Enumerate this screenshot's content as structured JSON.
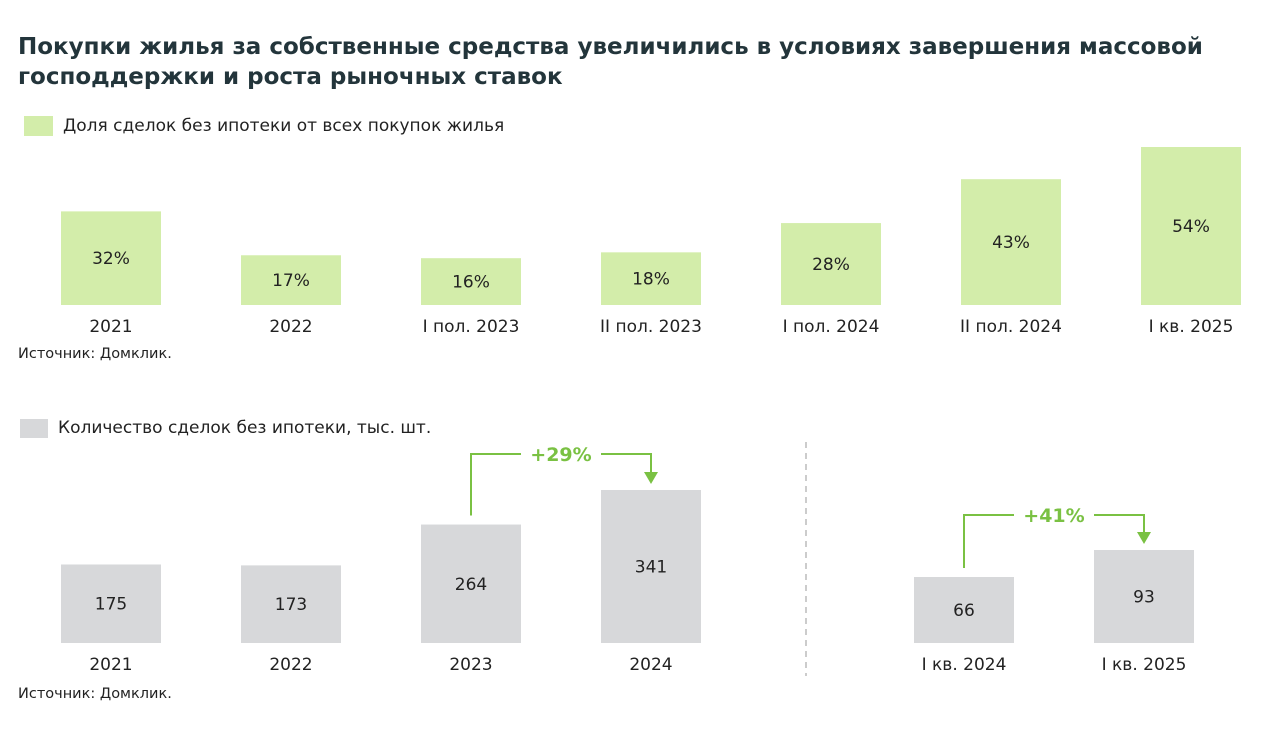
{
  "title": "Покупки жилья за собственные средства увеличились в условиях завершения массовой господдержки и роста рыночных ставок",
  "source_top": "Источник: Домклик.",
  "source_bottom": "Источник: Домклик.",
  "colors": {
    "green_bar": "#d3edaa",
    "grey_bar": "#d7d8da",
    "accent": "#7ac143",
    "divider": "#bcbcbc"
  },
  "chart_data": [
    {
      "type": "bar",
      "legend": "Доля сделок без ипотеки от всех покупок жилья",
      "categories": [
        "2021",
        "2022",
        "I пол. 2023",
        "II пол. 2023",
        "I пол. 2024",
        "II пол. 2024",
        "I кв. 2025"
      ],
      "values": [
        32,
        17,
        16,
        18,
        28,
        43,
        54
      ],
      "labels": [
        "32%",
        "17%",
        "16%",
        "18%",
        "28%",
        "43%",
        "54%"
      ],
      "unit": "%"
    },
    {
      "type": "bar",
      "legend": "Количество сделок без ипотеки, тыс. шт.",
      "groups": [
        {
          "categories": [
            "2021",
            "2022",
            "2023",
            "2024"
          ],
          "values": [
            175,
            173,
            264,
            341
          ],
          "annotation": {
            "text": "+29%",
            "from": "2023",
            "to": "2024"
          }
        },
        {
          "categories": [
            "I кв. 2024",
            "I кв. 2025"
          ],
          "values": [
            66,
            93
          ],
          "annotation": {
            "text": "+41%",
            "from": "I кв. 2024",
            "to": "I кв. 2025"
          }
        }
      ]
    }
  ]
}
